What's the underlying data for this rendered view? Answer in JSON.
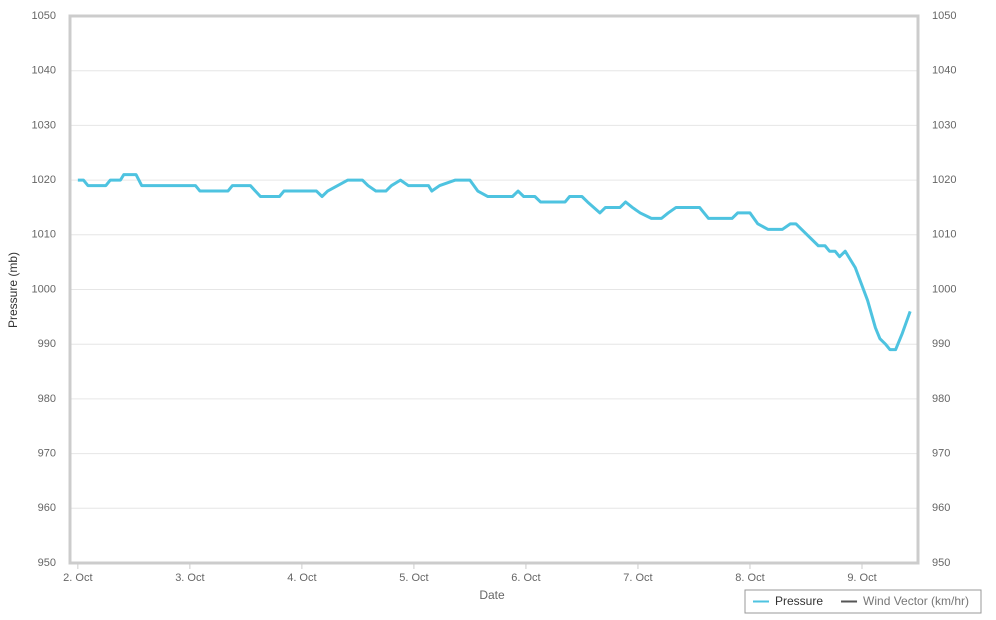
{
  "chart_data": {
    "type": "line",
    "xlabel": "Date",
    "ylabel": "Pressure (mb)",
    "xlim": [
      1.93,
      9.5
    ],
    "xticks": [
      {
        "value": 2,
        "label": "2. Oct"
      },
      {
        "value": 3,
        "label": "3. Oct"
      },
      {
        "value": 4,
        "label": "4. Oct"
      },
      {
        "value": 5,
        "label": "5. Oct"
      },
      {
        "value": 6,
        "label": "6. Oct"
      },
      {
        "value": 7,
        "label": "7. Oct"
      },
      {
        "value": 8,
        "label": "8. Oct"
      },
      {
        "value": 9,
        "label": "9. Oct"
      }
    ],
    "ylim": [
      950,
      1050
    ],
    "yticks": [
      950,
      960,
      970,
      980,
      990,
      1000,
      1010,
      1020,
      1030,
      1040,
      1050
    ],
    "y2lim": [
      950,
      1050
    ],
    "y2ticks": [
      950,
      960,
      970,
      980,
      990,
      1000,
      1010,
      1020,
      1030,
      1040,
      1050
    ],
    "grid": true,
    "legend": "bottom-right",
    "series": [
      {
        "name": "Pressure",
        "color": "#4ec3e0",
        "x": [
          2.0,
          2.05,
          2.09,
          2.25,
          2.29,
          2.38,
          2.41,
          2.52,
          2.57,
          3.05,
          3.09,
          3.34,
          3.38,
          3.54,
          3.63,
          3.8,
          3.84,
          4.13,
          4.18,
          4.23,
          4.32,
          4.41,
          4.54,
          4.59,
          4.66,
          4.75,
          4.8,
          4.88,
          4.95,
          5.13,
          5.16,
          5.23,
          5.37,
          5.5,
          5.57,
          5.66,
          5.88,
          5.93,
          5.98,
          6.08,
          6.13,
          6.35,
          6.39,
          6.5,
          6.55,
          6.66,
          6.71,
          6.84,
          6.89,
          6.95,
          7.02,
          7.12,
          7.21,
          7.27,
          7.34,
          7.55,
          7.63,
          7.84,
          7.89,
          8.0,
          8.07,
          8.16,
          8.29,
          8.36,
          8.41,
          8.46,
          8.61,
          8.67,
          8.71,
          8.76,
          8.8,
          8.85,
          8.94,
          9.05,
          9.12,
          9.16,
          9.21,
          9.25,
          9.3,
          9.36,
          9.43
        ],
        "values": [
          1020,
          1020,
          1019,
          1019,
          1020,
          1020,
          1021,
          1021,
          1019,
          1019,
          1018,
          1018,
          1019,
          1019,
          1017,
          1017,
          1018,
          1018,
          1017,
          1018,
          1019,
          1020,
          1020,
          1019,
          1018,
          1018,
          1019,
          1020,
          1019,
          1019,
          1018,
          1019,
          1020,
          1020,
          1018,
          1017,
          1017,
          1018,
          1017,
          1017,
          1016,
          1016,
          1017,
          1017,
          1016,
          1014,
          1015,
          1015,
          1016,
          1015,
          1014,
          1013,
          1013,
          1014,
          1015,
          1015,
          1013,
          1013,
          1014,
          1014,
          1012,
          1011,
          1011,
          1012,
          1012,
          1011,
          1008,
          1008,
          1007,
          1007,
          1006,
          1007,
          1004,
          998,
          993,
          991,
          990,
          989,
          989,
          992,
          996
        ]
      },
      {
        "name": "Wind Vector (km/hr)",
        "color": "#555555",
        "x": [],
        "values": []
      }
    ]
  }
}
